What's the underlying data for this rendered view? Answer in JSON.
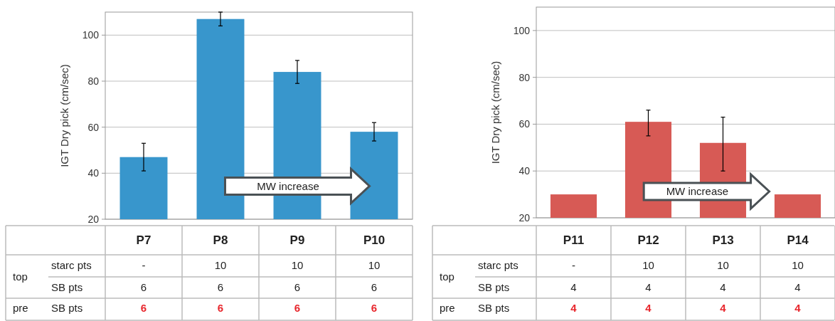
{
  "chart_data": [
    {
      "type": "bar",
      "ylabel": "IGT Dry pick (cm/sec)",
      "categories": [
        "P7",
        "P8",
        "P9",
        "P10"
      ],
      "values": [
        47,
        107,
        84,
        58
      ],
      "errors": [
        [
          41,
          53
        ],
        [
          104,
          110
        ],
        [
          79,
          89
        ],
        [
          54,
          62
        ]
      ],
      "color": "#3896cc",
      "ylim": [
        20,
        110
      ],
      "yticks": [
        20,
        40,
        60,
        80,
        100
      ],
      "grid": "y",
      "annotations": [
        "MW increase",
        "top",
        "pre",
        "starc pts",
        "SB pts",
        "SB pts",
        "-",
        "10",
        "10",
        "10",
        "6",
        "6",
        "6",
        "6",
        "6",
        "6",
        "6",
        "6"
      ]
    },
    {
      "type": "bar",
      "ylabel": "IGT Dry pick (cm/sec)",
      "categories": [
        "P11",
        "P12",
        "P13",
        "P14"
      ],
      "values": [
        30,
        61,
        52,
        30
      ],
      "errors": [
        null,
        [
          55,
          66
        ],
        [
          40,
          63
        ],
        null
      ],
      "color": "#d75a55",
      "ylim": [
        20,
        110
      ],
      "yticks": [
        20,
        40,
        60,
        80,
        100
      ],
      "grid": "y",
      "annotations": [
        "MW increase",
        "top",
        "pre",
        "starc pts",
        "SB pts",
        "SB pts",
        "-",
        "10",
        "10",
        "10",
        "4",
        "4",
        "4",
        "4",
        "4",
        "4",
        "4",
        "4"
      ]
    }
  ]
}
